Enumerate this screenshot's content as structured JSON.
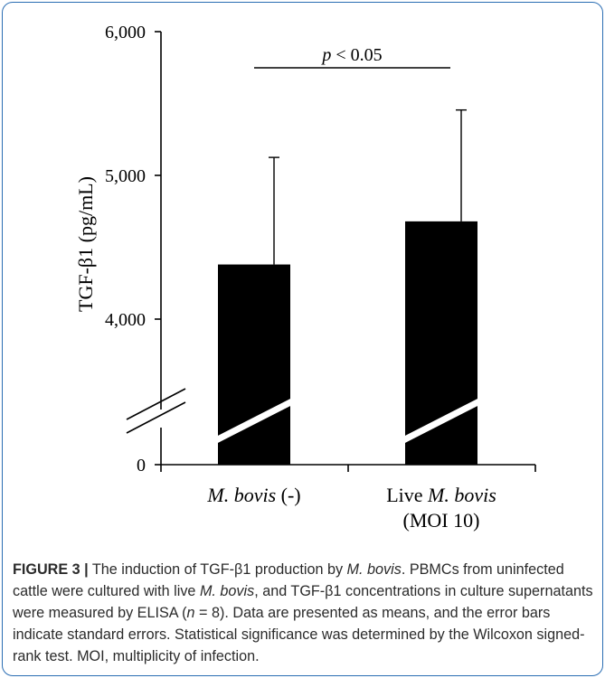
{
  "chart_data": {
    "type": "bar",
    "categories": [
      "M. bovis (-)",
      "Live M. bovis (MOI 10)"
    ],
    "category_labels": [
      {
        "lines": [
          [
            {
              "t": "M. bovis",
              "i": true
            },
            {
              "t": " (-)",
              "i": false
            }
          ]
        ]
      },
      {
        "lines": [
          [
            {
              "t": "Live ",
              "i": false
            },
            {
              "t": "M. bovis",
              "i": true
            }
          ],
          [
            {
              "t": "(MOI 10)",
              "i": false
            }
          ]
        ]
      }
    ],
    "values": [
      4380,
      4680
    ],
    "errors": [
      745,
      775
    ],
    "ylabel": "TGF-β1 (pg/mL)",
    "y_ticks": [
      0,
      4000,
      5000,
      6000
    ],
    "y_tick_labels": [
      "0",
      "4,000",
      "5,000",
      "6,000"
    ],
    "ylim": [
      3000,
      6000
    ],
    "axis_break": true,
    "grid": false,
    "significance": {
      "label_italic": "p",
      "label_rest": " < 0.05",
      "between": [
        0,
        1
      ]
    },
    "colors": {
      "bar": "#000000",
      "axis": "#000000"
    }
  },
  "caption": {
    "label": "FIGURE 3 |",
    "segments": [
      {
        "t": " The induction of TGF-β1 production by ",
        "i": false
      },
      {
        "t": "M. bovis",
        "i": true
      },
      {
        "t": ". PBMCs from uninfected cattle were cultured with live ",
        "i": false
      },
      {
        "t": "M. bovis",
        "i": true
      },
      {
        "t": ", and TGF-β1 concentrations in culture supernatants were measured by ELISA (",
        "i": false
      },
      {
        "t": "n",
        "i": true
      },
      {
        "t": " = 8). Data are presented as means, and the error bars indicate standard errors. Statistical significance was determined by the Wilcoxon signed-rank test. MOI, multiplicity of infection.",
        "i": false
      }
    ]
  },
  "colors": {
    "border": "#2a6db3",
    "caption_text": "#2b2b2b"
  }
}
